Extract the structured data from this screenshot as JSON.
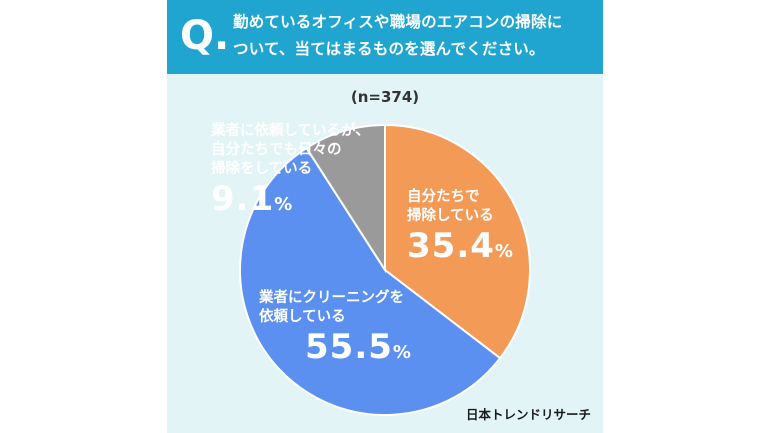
{
  "question": {
    "mark": "Q",
    "text_line1": "勤めているオフィスや職場のエアコンの掃除に",
    "text_line2": "ついて、当てはまるものを選んでください。"
  },
  "sample_size": "(n=374)",
  "credit": "日本トレンドリサーチ",
  "colors": {
    "header": "#1fa5cf",
    "background": "#e2f4f6",
    "self_clean": "#f39a57",
    "hire_cleaning": "#5b8ff0",
    "hire_and_self": "#9a9a9a"
  },
  "chart_data": {
    "type": "pie",
    "start_angle_deg": 0,
    "direction": "clockwise",
    "slices": [
      {
        "label_line1": "自分たちで",
        "label_line2": "掃除している",
        "label_line3": "",
        "value": 35.4,
        "display": "35.4",
        "color": "#f39a57"
      },
      {
        "label_line1": "業者にクリーニングを",
        "label_line2": "依頼している",
        "label_line3": "",
        "value": 55.5,
        "display": "55.5",
        "color": "#5b8ff0"
      },
      {
        "label_line1": "業者に依頼しているが、",
        "label_line2": "自分たちでも日々の",
        "label_line3": "掃除をしている",
        "value": 9.1,
        "display": "9.1",
        "color": "#9a9a9a"
      }
    ],
    "unit": "%"
  }
}
